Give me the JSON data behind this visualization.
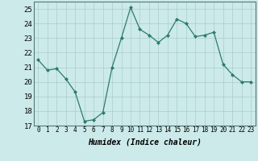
{
  "x": [
    0,
    1,
    2,
    3,
    4,
    5,
    6,
    7,
    8,
    9,
    10,
    11,
    12,
    13,
    14,
    15,
    16,
    17,
    18,
    19,
    20,
    21,
    22,
    23
  ],
  "y": [
    21.5,
    20.8,
    20.9,
    20.2,
    19.3,
    17.3,
    17.4,
    17.9,
    21.0,
    23.0,
    25.1,
    23.6,
    23.2,
    22.7,
    23.2,
    24.3,
    24.0,
    23.1,
    23.2,
    23.4,
    21.2,
    20.5,
    20.0,
    20.0
  ],
  "line_color": "#2d7a6e",
  "marker": "D",
  "marker_size": 2,
  "bg_color": "#cceaea",
  "grid_color": "#aacccc",
  "xlabel": "Humidex (Indice chaleur)",
  "xlim": [
    -0.5,
    23.5
  ],
  "ylim": [
    17,
    25.5
  ],
  "yticks": [
    17,
    18,
    19,
    20,
    21,
    22,
    23,
    24,
    25
  ],
  "xticks": [
    0,
    1,
    2,
    3,
    4,
    5,
    6,
    7,
    8,
    9,
    10,
    11,
    12,
    13,
    14,
    15,
    16,
    17,
    18,
    19,
    20,
    21,
    22,
    23
  ],
  "xtick_labels": [
    "0",
    "1",
    "2",
    "3",
    "4",
    "5",
    "6",
    "7",
    "8",
    "9",
    "10",
    "11",
    "12",
    "13",
    "14",
    "15",
    "16",
    "17",
    "18",
    "19",
    "20",
    "21",
    "22",
    "23"
  ],
  "xlabel_fontsize": 7,
  "tick_fontsize": 5.5,
  "ytick_fontsize": 6.5
}
